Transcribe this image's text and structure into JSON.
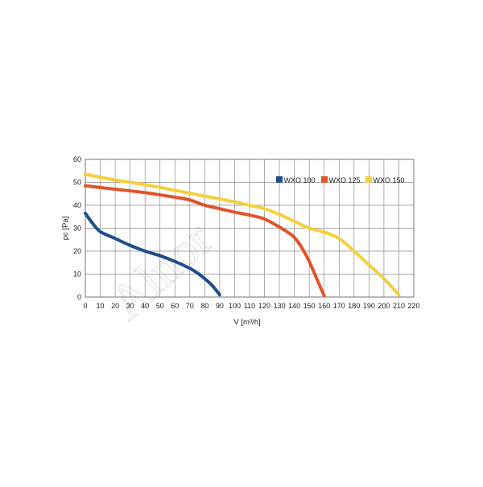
{
  "chart_data": {
    "type": "line",
    "title": "",
    "xlabel": "V [m³/h]",
    "ylabel": "pc [Pa]",
    "xlim": [
      0,
      220
    ],
    "ylim": [
      0,
      60
    ],
    "x_ticks": [
      0,
      10,
      20,
      30,
      40,
      50,
      60,
      70,
      80,
      90,
      100,
      110,
      120,
      130,
      140,
      150,
      160,
      170,
      180,
      190,
      200,
      210,
      220
    ],
    "y_ticks": [
      0,
      10,
      20,
      30,
      40,
      50,
      60
    ],
    "grid": true,
    "legend_position": "top-right",
    "series": [
      {
        "name": "WXO 100",
        "color": "#1f4e8c",
        "x": [
          0,
          5,
          10,
          20,
          30,
          40,
          50,
          60,
          70,
          75,
          80,
          85,
          90
        ],
        "y": [
          36.5,
          32,
          28.5,
          25.5,
          22.5,
          20,
          18,
          15.5,
          12.5,
          10.5,
          8,
          5,
          1
        ]
      },
      {
        "name": "WXO 125",
        "color": "#e0552a",
        "x": [
          0,
          20,
          40,
          60,
          70,
          80,
          90,
          100,
          110,
          120,
          130,
          135,
          140,
          145,
          150,
          155,
          160
        ],
        "y": [
          48.5,
          47,
          45.5,
          43.5,
          42.3,
          40,
          38.5,
          37,
          35.7,
          34,
          30.5,
          28.5,
          26,
          21.5,
          15.5,
          8,
          0.5
        ]
      },
      {
        "name": "WXO 150",
        "color": "#f4d03f",
        "x": [
          0,
          20,
          40,
          60,
          80,
          100,
          110,
          120,
          130,
          140,
          150,
          160,
          170,
          180,
          190,
          200,
          210
        ],
        "y": [
          53.5,
          51,
          49,
          46.5,
          44,
          41.5,
          40,
          38.5,
          36,
          33,
          30,
          28.3,
          25.5,
          20,
          14,
          8,
          1
        ]
      }
    ],
    "watermark": "Alnor"
  }
}
